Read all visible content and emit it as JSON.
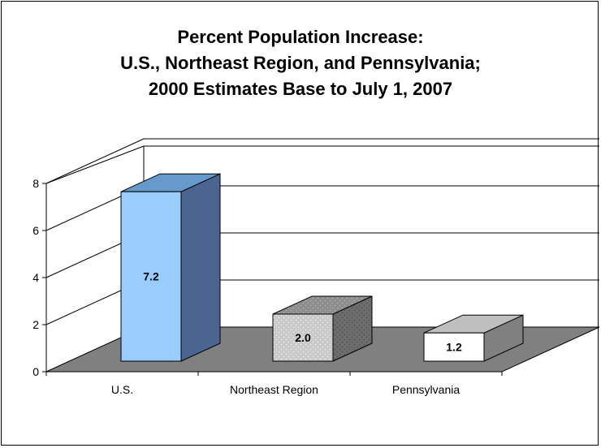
{
  "chart_data": {
    "type": "bar",
    "title_lines": [
      "Percent Population Increase:",
      "U.S., Northeast Region, and Pennsylvania;",
      "2000 Estimates Base to July 1, 2007"
    ],
    "categories": [
      "U.S.",
      "Northeast Region",
      "Pennsylvania"
    ],
    "values": [
      7.2,
      2.0,
      1.2
    ],
    "data_labels": [
      "7.2",
      "2.0",
      "1.2"
    ],
    "ylim": [
      0,
      8
    ],
    "yticks": [
      "0",
      "2",
      "4",
      "6",
      "8"
    ],
    "grid": true,
    "legend": "none",
    "three_d": true,
    "colors": {
      "us_front": "#99CCFF",
      "us_top": "#6699CC",
      "us_side": "#4A6690",
      "ne_front": "#C0C0C0",
      "ne_top": "#8A8A8A",
      "ne_side": "#707070",
      "pa_front": "#FFFFFF",
      "pa_top": "#BFBFBF",
      "pa_side": "#808080",
      "floor": "#808080"
    }
  }
}
